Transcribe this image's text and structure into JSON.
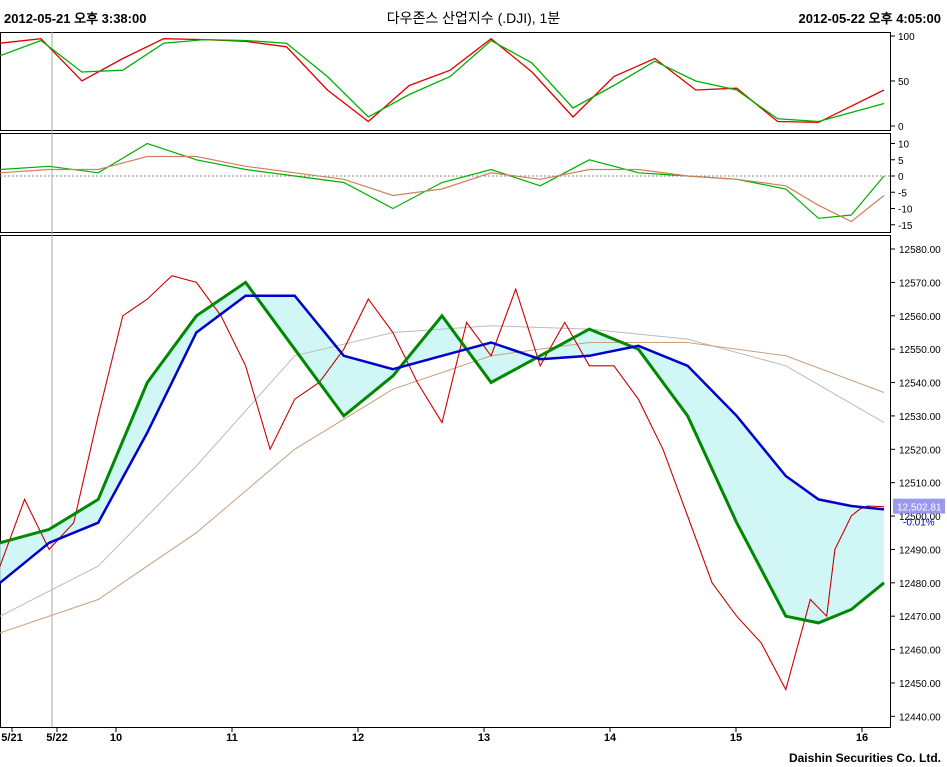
{
  "header": {
    "left_time": "2012-05-21 오후 3:38:00",
    "title": "다우존스 산업지수 (.DJI), 1분",
    "right_time": "2012-05-22 오후 4:05:00"
  },
  "footer": "Daishin Securities Co. Ltd.",
  "price_label": {
    "value": "12,502.81",
    "change": "-0.01%"
  },
  "chart_data": [
    {
      "type": "line",
      "panel": "stochastic",
      "yticks": [
        "100",
        "50",
        "0"
      ],
      "ylim": [
        0,
        100
      ],
      "series": [
        {
          "color": "#e00000",
          "x": [
            0,
            5,
            10,
            15,
            20,
            25,
            30,
            35,
            40,
            45,
            50,
            55,
            60,
            65,
            70,
            75,
            80,
            85,
            90,
            95,
            100,
            108
          ],
          "values": [
            92,
            97,
            50,
            75,
            97,
            96,
            94,
            88,
            40,
            5,
            45,
            62,
            97,
            60,
            10,
            55,
            75,
            40,
            42,
            5,
            4,
            40
          ]
        },
        {
          "color": "#00b000",
          "x": [
            0,
            5,
            10,
            15,
            20,
            25,
            30,
            35,
            40,
            45,
            50,
            55,
            60,
            65,
            70,
            75,
            80,
            85,
            90,
            95,
            100,
            108
          ],
          "values": [
            78,
            95,
            60,
            62,
            92,
            96,
            95,
            92,
            55,
            10,
            35,
            55,
            95,
            70,
            20,
            45,
            72,
            50,
            40,
            8,
            5,
            25
          ]
        }
      ]
    },
    {
      "type": "line",
      "panel": "macd",
      "yticks": [
        "10",
        "5",
        "0",
        "-5",
        "-10",
        "-15"
      ],
      "ylim": [
        -16,
        12
      ],
      "series": [
        {
          "color": "#00b000",
          "x": [
            0,
            6,
            12,
            18,
            24,
            30,
            36,
            42,
            48,
            54,
            60,
            66,
            72,
            78,
            84,
            90,
            96,
            100,
            104,
            108
          ],
          "values": [
            2,
            3,
            1,
            10,
            5,
            2,
            0,
            -2,
            -10,
            -2,
            2,
            -3,
            5,
            1,
            0,
            -1,
            -4,
            -13,
            -12,
            0
          ]
        },
        {
          "color": "#d08060",
          "x": [
            0,
            6,
            12,
            18,
            24,
            30,
            36,
            42,
            48,
            54,
            60,
            66,
            72,
            78,
            84,
            90,
            96,
            100,
            104,
            108
          ],
          "values": [
            1,
            2,
            2,
            6,
            6,
            3,
            1,
            -1,
            -6,
            -4,
            1,
            -1,
            2,
            2,
            0,
            -1,
            -3,
            -9,
            -14,
            -6
          ]
        }
      ]
    },
    {
      "type": "line",
      "panel": "price",
      "xticks": [
        "5/21",
        "5/22",
        "10",
        "11",
        "12",
        "13",
        "14",
        "15",
        "16"
      ],
      "yticks": [
        "12580.00",
        "12570.00",
        "12560.00",
        "12550.00",
        "12540.00",
        "12530.00",
        "12520.00",
        "12510.00",
        "12500.00",
        "12490.00",
        "12480.00",
        "12470.00",
        "12460.00",
        "12450.00",
        "12440.00"
      ],
      "ylim": [
        12438,
        12583
      ],
      "price": {
        "x": [
          0,
          3,
          6,
          9,
          12,
          15,
          18,
          21,
          24,
          27,
          30,
          33,
          36,
          39,
          42,
          45,
          48,
          51,
          54,
          57,
          60,
          63,
          66,
          69,
          72,
          75,
          78,
          81,
          84,
          87,
          90,
          93,
          96,
          99,
          101,
          102,
          103,
          104,
          105,
          106,
          108
        ],
        "values": [
          12485,
          12505,
          12490,
          12498,
          12530,
          12560,
          12565,
          12572,
          12570,
          12560,
          12545,
          12520,
          12535,
          12540,
          12550,
          12565,
          12555,
          12540,
          12528,
          12558,
          12548,
          12568,
          12545,
          12558,
          12545,
          12545,
          12535,
          12520,
          12500,
          12480,
          12470,
          12462,
          12448,
          12475,
          12470,
          12490,
          12495,
          12500,
          12502,
          12503,
          12502.81
        ]
      },
      "series": [
        {
          "color": "#008800",
          "x": [
            0,
            6,
            12,
            18,
            24,
            30,
            36,
            42,
            48,
            54,
            60,
            66,
            72,
            78,
            84,
            90,
            96,
            100,
            104,
            108
          ],
          "values": [
            12492,
            12496,
            12505,
            12540,
            12560,
            12570,
            12550,
            12530,
            12542,
            12560,
            12540,
            12548,
            12556,
            12550,
            12530,
            12498,
            12470,
            12468,
            12472,
            12480
          ]
        },
        {
          "color": "#0000cc",
          "x": [
            0,
            6,
            12,
            18,
            24,
            30,
            36,
            42,
            48,
            54,
            60,
            66,
            72,
            78,
            84,
            90,
            96,
            100,
            104,
            108
          ],
          "values": [
            12480,
            12492,
            12498,
            12525,
            12555,
            12566,
            12566,
            12548,
            12544,
            12548,
            12552,
            12547,
            12548,
            12551,
            12545,
            12530,
            12512,
            12505,
            12503,
            12502
          ]
        },
        {
          "color": "#bbbbbb",
          "x": [
            0,
            12,
            24,
            36,
            48,
            60,
            72,
            84,
            96,
            108
          ],
          "values": [
            12470,
            12485,
            12515,
            12548,
            12555,
            12557,
            12556,
            12553,
            12545,
            12528
          ]
        },
        {
          "color": "#c9a080",
          "x": [
            0,
            12,
            24,
            36,
            48,
            60,
            72,
            84,
            96,
            108
          ],
          "values": [
            12465,
            12475,
            12495,
            12520,
            12538,
            12548,
            12552,
            12552,
            12548,
            12537
          ]
        }
      ]
    }
  ]
}
